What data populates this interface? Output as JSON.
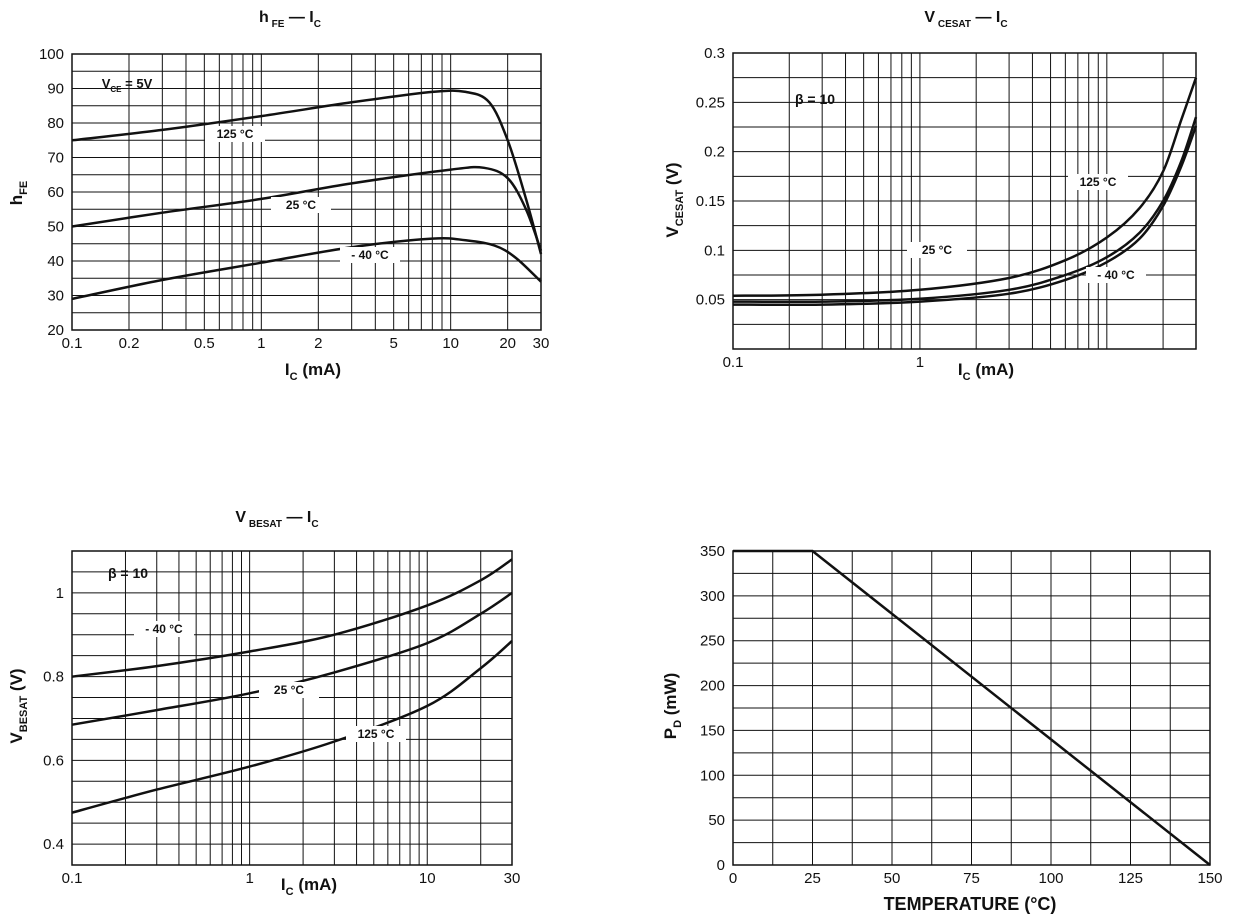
{
  "chart_data": [
    {
      "id": "hfe",
      "type": "line",
      "title_main": "h",
      "title_main_sub": "FE",
      "title_rest": "— I",
      "title_rest_sub": "C",
      "xlabel": "I",
      "xlabel_sub": "C",
      "xlabel_unit": "(mA)",
      "ylabel": "h",
      "ylabel_sub": "FE",
      "x_scale": "log",
      "xlim": [
        0.1,
        30
      ],
      "ylim": [
        20,
        100
      ],
      "x_ticks": [
        0.1,
        0.2,
        0.5,
        1,
        2,
        5,
        10,
        20,
        30
      ],
      "x_tick_labels": [
        "0.1",
        "0.2",
        "0.5",
        "1",
        "2",
        "5",
        "10",
        "20",
        "30"
      ],
      "y_ticks": [
        20,
        30,
        40,
        50,
        60,
        70,
        80,
        90,
        100
      ],
      "y_tick_labels": [
        "20",
        "30",
        "40",
        "50",
        "60",
        "70",
        "80",
        "90",
        "100"
      ],
      "grid": true,
      "annotation": {
        "text": "V",
        "sub": "CE",
        "rest": " = 5V"
      },
      "series": [
        {
          "name": "125 °C",
          "x": [
            0.1,
            0.3,
            1,
            3,
            8,
            12,
            16,
            20,
            25,
            30
          ],
          "y": [
            75,
            78,
            82,
            86,
            89,
            89,
            86,
            75,
            58,
            42
          ]
        },
        {
          "name": "25 °C",
          "x": [
            0.1,
            0.3,
            1,
            3,
            10,
            15,
            20,
            25,
            30
          ],
          "y": [
            50,
            54,
            58,
            62.5,
            66.5,
            67,
            64,
            55,
            43
          ]
        },
        {
          "name": "- 40 °C",
          "x": [
            0.1,
            0.3,
            1,
            3,
            8,
            12,
            17,
            22,
            30
          ],
          "y": [
            29,
            34.5,
            39.5,
            44,
            46.5,
            46,
            44.5,
            41,
            34
          ]
        }
      ]
    },
    {
      "id": "vcesat",
      "type": "line",
      "title_main": "V",
      "title_main_sub": "CESAT",
      "title_rest": "— I",
      "title_rest_sub": "C",
      "xlabel": "I",
      "xlabel_sub": "C",
      "xlabel_unit": "(mA)",
      "ylabel": "V",
      "ylabel_sub": "CESAT",
      "ylabel_unit": "(V)",
      "x_scale": "log",
      "xlim": [
        0.1,
        30
      ],
      "ylim": [
        0,
        0.3
      ],
      "x_ticks": [
        0.1,
        1
      ],
      "x_tick_labels": [
        "0.1",
        "1"
      ],
      "y_ticks": [
        0,
        0.05,
        0.1,
        0.15,
        0.2,
        0.25,
        0.3
      ],
      "y_tick_labels": [
        "",
        "0.05",
        "0.1",
        "0.15",
        "0.2",
        "0.25",
        "0.3"
      ],
      "grid": true,
      "annotation": {
        "text": "β  = 10"
      },
      "series": [
        {
          "name": "125 °C",
          "x": [
            0.1,
            0.3,
            1,
            3,
            6,
            10,
            15,
            20,
            25,
            30
          ],
          "y": [
            0.054,
            0.055,
            0.06,
            0.072,
            0.09,
            0.113,
            0.143,
            0.18,
            0.232,
            0.275
          ]
        },
        {
          "name": "25 °C",
          "x": [
            0.1,
            0.3,
            1,
            3,
            6,
            10,
            15,
            20,
            25,
            30
          ],
          "y": [
            0.048,
            0.048,
            0.051,
            0.06,
            0.075,
            0.093,
            0.118,
            0.15,
            0.19,
            0.235
          ]
        },
        {
          "name": "- 40 °C",
          "x": [
            0.1,
            0.3,
            1,
            3,
            6,
            10,
            15,
            20,
            25,
            30
          ],
          "y": [
            0.045,
            0.045,
            0.048,
            0.056,
            0.07,
            0.088,
            0.112,
            0.145,
            0.185,
            0.226
          ]
        }
      ]
    },
    {
      "id": "vbesat",
      "type": "line",
      "title_main": "V",
      "title_main_sub": "BESAT",
      "title_rest": "— I",
      "title_rest_sub": "C",
      "xlabel": "I",
      "xlabel_sub": "C",
      "xlabel_unit": "(mA)",
      "ylabel": "V",
      "ylabel_sub": "BESAT",
      "ylabel_unit": "(V)",
      "x_scale": "log",
      "xlim": [
        0.1,
        30
      ],
      "ylim": [
        0.35,
        1.1
      ],
      "x_ticks": [
        0.1,
        1,
        10,
        30
      ],
      "x_tick_labels": [
        "0.1",
        "1",
        "10",
        "30"
      ],
      "y_ticks": [
        0.4,
        0.6,
        0.8,
        1.0
      ],
      "y_tick_labels": [
        "0.4",
        "0.6",
        "0.8",
        "1"
      ],
      "grid": true,
      "annotation": {
        "text": "β  = 10"
      },
      "series": [
        {
          "name": "- 40 °C",
          "x": [
            0.1,
            0.3,
            1,
            3,
            10,
            20,
            30
          ],
          "y": [
            0.8,
            0.825,
            0.86,
            0.9,
            0.97,
            1.03,
            1.08
          ]
        },
        {
          "name": "25 °C",
          "x": [
            0.1,
            0.3,
            1,
            3,
            10,
            20,
            30
          ],
          "y": [
            0.685,
            0.72,
            0.76,
            0.81,
            0.88,
            0.95,
            1.0
          ]
        },
        {
          "name": "125 °C",
          "x": [
            0.1,
            0.3,
            1,
            3,
            10,
            20,
            30
          ],
          "y": [
            0.475,
            0.53,
            0.585,
            0.645,
            0.73,
            0.82,
            0.885
          ]
        }
      ]
    },
    {
      "id": "pd",
      "type": "line",
      "xlabel": "TEMPERATURE (°C)",
      "ylabel": "P",
      "ylabel_sub": "D",
      "ylabel_unit": "(mW)",
      "x_scale": "linear",
      "xlim": [
        0,
        150
      ],
      "ylim": [
        0,
        350
      ],
      "x_ticks": [
        0,
        25,
        50,
        75,
        100,
        125,
        150
      ],
      "x_tick_labels": [
        "0",
        "25",
        "50",
        "75",
        "100",
        "125",
        "150"
      ],
      "y_ticks": [
        0,
        50,
        100,
        150,
        200,
        250,
        300,
        350
      ],
      "y_tick_labels": [
        "0",
        "50",
        "100",
        "150",
        "200",
        "250",
        "300",
        "350"
      ],
      "grid": true,
      "series": [
        {
          "name": "",
          "x": [
            0,
            25,
            150
          ],
          "y": [
            350,
            350,
            0
          ]
        }
      ]
    }
  ]
}
